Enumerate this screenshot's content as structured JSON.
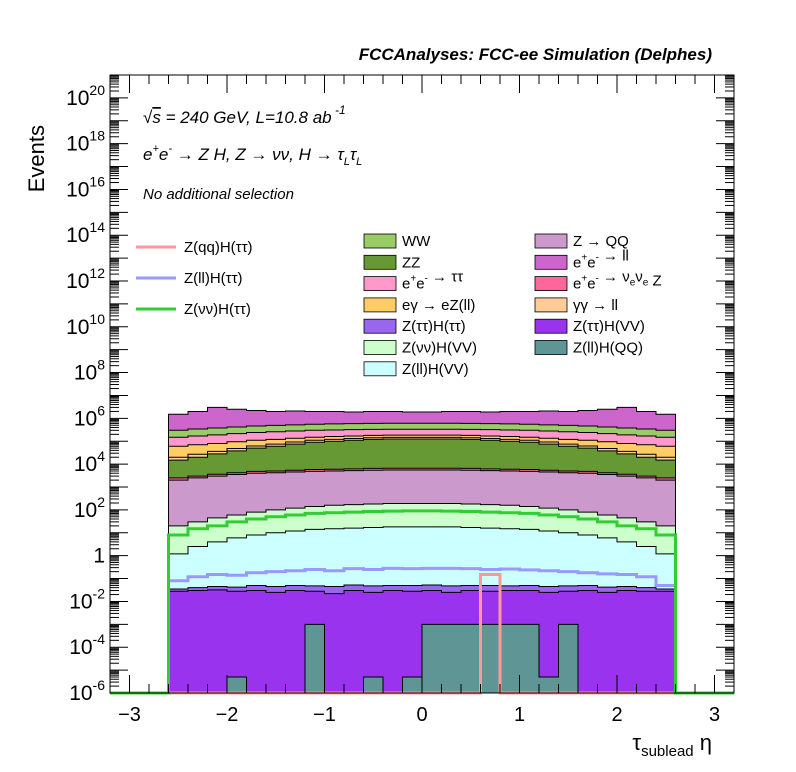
{
  "header": {
    "title": "FCCAnalyses: FCC-ee Simulation (Delphes)"
  },
  "annotations": {
    "energy_lumi": "√s = 240 GeV, L=10.8 ab -1",
    "process": "e+e- → Z H, Z → νν, H → τL τL",
    "selection": "No additional selection"
  },
  "chart_data": {
    "type": "area",
    "title": "FCCAnalyses: FCC-ee Simulation (Delphes)",
    "xlabel": "τ_sublead η",
    "ylabel": "Events",
    "xlim": [
      -3.2,
      3.2
    ],
    "ylim": [
      1e-06,
      1e+21
    ],
    "yscale": "log",
    "stacked": true,
    "grid": false,
    "x_ticks": [
      -3,
      -2,
      -1,
      0,
      1,
      2,
      3
    ],
    "x_tick_labels": [
      "−3",
      "−2",
      "−1",
      "0",
      "1",
      "2",
      "3"
    ],
    "y_ticks": [
      1e-06,
      0.0001,
      0.01,
      1,
      100.0,
      10000.0,
      1000000.0,
      100000000.0,
      10000000000.0,
      1000000000000.0,
      100000000000000.0,
      1e+16,
      1e+18,
      1e+20
    ],
    "y_tick_labels": [
      {
        "base": "10",
        "exp": "-6"
      },
      {
        "base": "10",
        "exp": "-4"
      },
      {
        "base": "10",
        "exp": "-2"
      },
      {
        "base": "1",
        "exp": ""
      },
      {
        "base": "10",
        "exp": "2"
      },
      {
        "base": "10",
        "exp": "4"
      },
      {
        "base": "10",
        "exp": "6"
      },
      {
        "base": "10",
        "exp": "8"
      },
      {
        "base": "10",
        "exp": "10"
      },
      {
        "base": "10",
        "exp": "12"
      },
      {
        "base": "10",
        "exp": "14"
      },
      {
        "base": "10",
        "exp": "16"
      },
      {
        "base": "10",
        "exp": "18"
      },
      {
        "base": "10",
        "exp": "20"
      }
    ],
    "bin_edges": [
      -2.6,
      -2.4,
      -2.2,
      -2.0,
      -1.8,
      -1.6,
      -1.4,
      -1.2,
      -1.0,
      -0.8,
      -0.6,
      -0.4,
      -0.2,
      0.0,
      0.2,
      0.4,
      0.6,
      0.8,
      1.0,
      1.2,
      1.4,
      1.6,
      1.8,
      2.0,
      2.2,
      2.4,
      2.6
    ],
    "stack_colors_note": "stack tops listed in cumulative order (bottom to top)",
    "stack": [
      {
        "name": "Z(ll)H(QQ)",
        "color": "#5f9595",
        "tops": [
          1e-06,
          1e-06,
          1e-06,
          5e-06,
          1e-06,
          1e-06,
          1e-06,
          0.001,
          1e-06,
          1e-06,
          5e-06,
          1e-06,
          5e-06,
          0.001,
          0.001,
          0.001,
          0.001,
          0.001,
          0.001,
          5e-06,
          0.001,
          1e-06,
          1e-06,
          1e-06,
          1e-06,
          1e-06
        ]
      },
      {
        "name": "Z(ττ)H(VV)",
        "color": "#9933ee",
        "tops": [
          0.028,
          0.03,
          0.032,
          0.028,
          0.03,
          0.025,
          0.03,
          0.028,
          0.022,
          0.03,
          0.025,
          0.03,
          0.028,
          0.03,
          0.025,
          0.03,
          0.028,
          0.03,
          0.03,
          0.025,
          0.028,
          0.03,
          0.025,
          0.03,
          0.028,
          0.028
        ]
      },
      {
        "name": "Z(ττ)H(ττ)",
        "color": "#9966ee",
        "tops": [
          0.035,
          0.04,
          0.045,
          0.042,
          0.05,
          0.045,
          0.05,
          0.048,
          0.045,
          0.052,
          0.048,
          0.05,
          0.05,
          0.052,
          0.048,
          0.05,
          0.05,
          0.048,
          0.05,
          0.045,
          0.048,
          0.05,
          0.042,
          0.045,
          0.04,
          0.035
        ]
      },
      {
        "name": "Z(ll)H(VV)",
        "color": "#ccffff",
        "tops": [
          1.2,
          2.5,
          4.0,
          6.0,
          8.0,
          10.0,
          12.0,
          14.0,
          15.0,
          16.0,
          17.0,
          18.0,
          18.0,
          18.0,
          18.0,
          17.0,
          16.0,
          15.0,
          14.0,
          12.0,
          10.0,
          8.0,
          6.0,
          4.0,
          2.5,
          1.2
        ]
      },
      {
        "name": "Z(νν)H(VV)",
        "color": "#ccffcc",
        "tops": [
          20,
          30,
          45,
          60,
          80,
          100,
          120,
          140,
          160,
          170,
          180,
          190,
          190,
          190,
          190,
          180,
          170,
          160,
          140,
          120,
          100,
          80,
          60,
          45,
          30,
          20
        ]
      },
      {
        "name": "Z → QQ",
        "color": "#cc99cc",
        "tops": [
          2000,
          2500,
          3000,
          3500,
          4000,
          4200,
          4500,
          4800,
          5000,
          5200,
          5400,
          5500,
          5500,
          5500,
          5500,
          5400,
          5200,
          5000,
          4800,
          4500,
          4200,
          4000,
          3500,
          3000,
          2500,
          2000
        ]
      },
      {
        "name": "e+e- → νeνe Z",
        "color": "#ff6699",
        "tops": [
          2500,
          3000,
          3600,
          4200,
          4800,
          5000,
          5400,
          5800,
          6000,
          6200,
          6500,
          6600,
          6600,
          6600,
          6600,
          6500,
          6200,
          6000,
          5800,
          5400,
          5000,
          4800,
          4200,
          3600,
          3000,
          2500
        ]
      },
      {
        "name": "ZZ",
        "color": "#669933",
        "tops": [
          15000,
          20000,
          28000,
          38000,
          50000,
          60000,
          75000,
          90000,
          100000,
          110000,
          120000,
          125000,
          125000,
          125000,
          125000,
          120000,
          110000,
          100000,
          90000,
          75000,
          60000,
          50000,
          38000,
          28000,
          20000,
          15000
        ]
      },
      {
        "name": "γγ → ll",
        "color": "#ffcc99",
        "tops": [
          20000,
          27000,
          36000,
          48000,
          62000,
          75000,
          92000,
          110000,
          120000,
          132000,
          142000,
          148000,
          148000,
          148000,
          148000,
          142000,
          132000,
          120000,
          110000,
          92000,
          75000,
          62000,
          48000,
          36000,
          27000,
          20000
        ]
      },
      {
        "name": "eγ → eZ(ll)",
        "color": "#ffcc66",
        "tops": [
          60000,
          70000,
          80000,
          95000,
          110000,
          120000,
          135000,
          150000,
          160000,
          170000,
          180000,
          185000,
          185000,
          185000,
          185000,
          180000,
          170000,
          160000,
          150000,
          135000,
          120000,
          110000,
          95000,
          80000,
          70000,
          60000
        ]
      },
      {
        "name": "e+e- → ττ",
        "color": "#ff99cc",
        "tops": [
          150000,
          170000,
          190000,
          215000,
          240000,
          260000,
          280000,
          300000,
          310000,
          320000,
          330000,
          335000,
          335000,
          335000,
          335000,
          330000,
          320000,
          310000,
          300000,
          280000,
          260000,
          240000,
          215000,
          190000,
          170000,
          150000
        ]
      },
      {
        "name": "WW",
        "color": "#99cc66",
        "tops": [
          300000,
          340000,
          380000,
          420000,
          460000,
          490000,
          520000,
          550000,
          570000,
          590000,
          600000,
          610000,
          610000,
          610000,
          610000,
          600000,
          590000,
          570000,
          550000,
          520000,
          490000,
          460000,
          420000,
          380000,
          340000,
          300000
        ]
      },
      {
        "name": "e+e- → ll",
        "color": "#cc66cc",
        "tops": [
          1500000,
          2000000,
          3000000,
          2500000,
          2200000,
          2000000,
          2100000,
          2000000,
          2000000,
          1900000,
          2000000,
          2000000,
          1900000,
          1900000,
          2000000,
          2000000,
          1900000,
          2000000,
          2000000,
          2100000,
          2000000,
          2200000,
          2500000,
          3000000,
          2000000,
          1500000
        ]
      }
    ],
    "signal_lines": [
      {
        "name": "Z(qq)H(ττ)",
        "color": "#ff9999",
        "values": [
          1e-06,
          1e-06,
          1e-06,
          1e-06,
          1e-06,
          1e-06,
          1e-06,
          1e-06,
          1e-06,
          1e-06,
          1e-06,
          1e-06,
          1e-06,
          1e-06,
          1e-06,
          1e-06,
          0.15,
          1e-06,
          1e-06,
          1e-06,
          1e-06,
          1e-06,
          1e-06,
          1e-06,
          1e-06,
          1e-06
        ]
      },
      {
        "name": "Z(ll)H(ττ)",
        "color": "#9999ff",
        "values": [
          0.08,
          0.12,
          0.15,
          0.14,
          0.18,
          0.2,
          0.22,
          0.25,
          0.22,
          0.27,
          0.25,
          0.28,
          0.27,
          0.28,
          0.28,
          0.27,
          0.25,
          0.26,
          0.24,
          0.22,
          0.2,
          0.18,
          0.16,
          0.15,
          0.12,
          0.05
        ]
      },
      {
        "name": "Z(νν)H(ττ)",
        "color": "#33cc33",
        "values": [
          8,
          15,
          20,
          30,
          40,
          50,
          60,
          70,
          75,
          80,
          85,
          88,
          90,
          90,
          88,
          85,
          80,
          75,
          70,
          60,
          50,
          40,
          30,
          20,
          15,
          8
        ]
      }
    ],
    "legend": {
      "placement": "upper",
      "lines": [
        "Z(qq)H(ττ)",
        "Z(ll)H(ττ)",
        "Z(νν)H(ττ)"
      ],
      "col1": [
        "WW",
        "ZZ",
        "e+e- → ττ",
        "eγ → eZ(ll)",
        "Z(ττ)H(ττ)",
        "Z(νν)H(VV)",
        "Z(ll)H(VV)"
      ],
      "col2": [
        "Z → QQ",
        "e+e- → ll",
        "e+e- → νeνe Z",
        "γγ → ll",
        "Z(ττ)H(VV)",
        "Z(ll)H(QQ)"
      ]
    },
    "legend_colors": {
      "WW": "#99cc66",
      "ZZ": "#669933",
      "e+e- → ττ": "#ff99cc",
      "eγ → eZ(ll)": "#ffcc66",
      "Z(ττ)H(ττ)": "#9966ee",
      "Z(νν)H(VV)": "#ccffcc",
      "Z(ll)H(VV)": "#ccffff",
      "Z → QQ": "#cc99cc",
      "e+e- → ll": "#cc66cc",
      "e+e- → νeνe Z": "#ff6699",
      "γγ → ll": "#ffcc99",
      "Z(ττ)H(VV)": "#9933ee",
      "Z(ll)H(QQ)": "#5f9595",
      "Z(qq)H(ττ)": "#ff9999",
      "Z(ll)H(ττ)": "#9999ff",
      "Z(νν)H(ττ)": "#33cc33"
    }
  }
}
